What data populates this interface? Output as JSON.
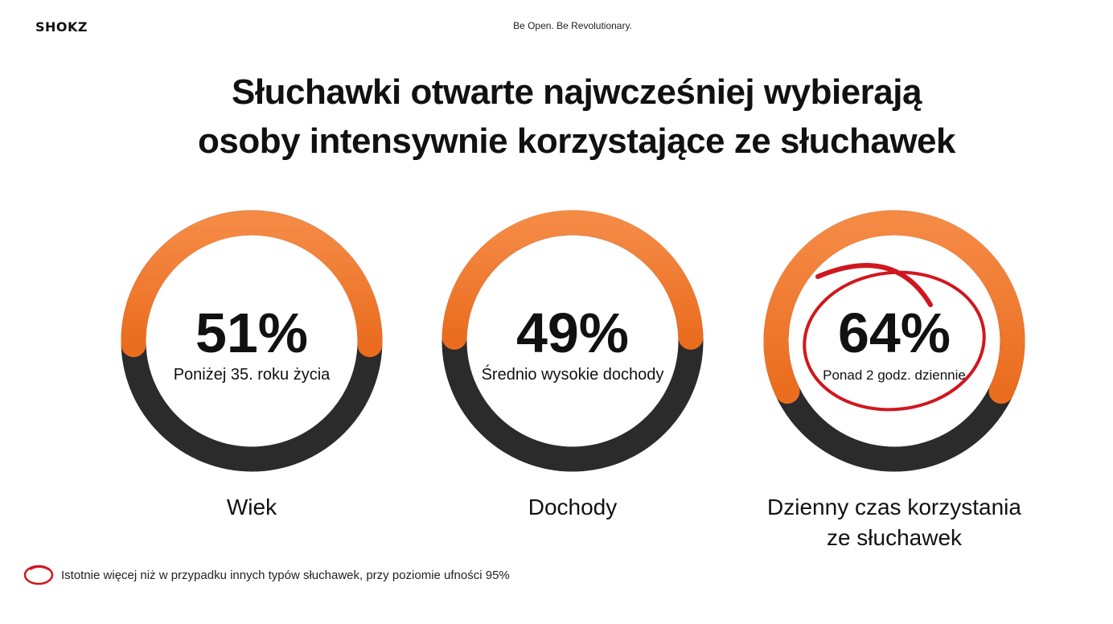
{
  "brand": {
    "logo_text": "SHOKZ",
    "tagline": "Be Open. Be Revolutionary."
  },
  "headline": {
    "line1": "Słuchawki otwarte najwcześniej wybierają",
    "line2": "osoby intensywnie korzystające ze słuchawek"
  },
  "colors": {
    "accent_orange": "#f07a2e",
    "accent_orange_light": "#f58a45",
    "track_dark": "#2b2b2b",
    "highlight_red": "#d0171f"
  },
  "chart_data": [
    {
      "type": "pie",
      "value": 51,
      "value_label": "51%",
      "sublabel": "Poniżej 35. roku życia",
      "category_lines": [
        "Wiek"
      ],
      "highlighted": false
    },
    {
      "type": "pie",
      "value": 49,
      "value_label": "49%",
      "sublabel": "Średnio wysokie dochody",
      "category_lines": [
        "Dochody"
      ],
      "highlighted": false
    },
    {
      "type": "pie",
      "value": 64,
      "value_label": "64%",
      "sublabel": "Ponad 2 godz. dziennie",
      "category_lines": [
        "Dzienny czas korzystania",
        "ze słuchawek"
      ],
      "highlighted": true
    }
  ],
  "footnote": {
    "text": "Istotnie więcej niż w przypadku innych typów słuchawek, przy poziomie ufności 95%",
    "icon": "red-circle-icon"
  }
}
